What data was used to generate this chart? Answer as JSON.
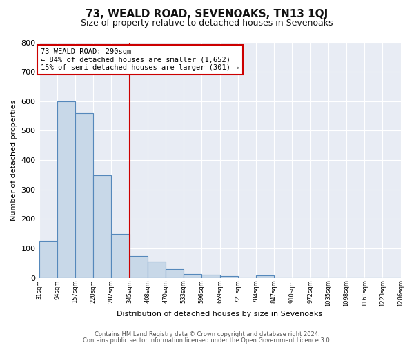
{
  "title": "73, WEALD ROAD, SEVENOAKS, TN13 1QJ",
  "subtitle": "Size of property relative to detached houses in Sevenoaks",
  "xlabel": "Distribution of detached houses by size in Sevenoaks",
  "ylabel": "Number of detached properties",
  "footer_lines": [
    "Contains HM Land Registry data © Crown copyright and database right 2024.",
    "Contains public sector information licensed under the Open Government Licence 3.0."
  ],
  "annotation_lines": [
    "73 WEALD ROAD: 290sqm",
    "← 84% of detached houses are smaller (1,652)",
    "15% of semi-detached houses are larger (301) →"
  ],
  "bin_labels": [
    "31sqm",
    "94sqm",
    "157sqm",
    "220sqm",
    "282sqm",
    "345sqm",
    "408sqm",
    "470sqm",
    "533sqm",
    "596sqm",
    "659sqm",
    "721sqm",
    "784sqm",
    "847sqm",
    "910sqm",
    "972sqm",
    "1035sqm",
    "1098sqm",
    "1161sqm",
    "1223sqm",
    "1286sqm"
  ],
  "bar_values": [
    125,
    600,
    560,
    348,
    148,
    75,
    55,
    30,
    13,
    10,
    6,
    0,
    8,
    0,
    0,
    0,
    0,
    0,
    0,
    0
  ],
  "bar_color": "#c8d8e8",
  "bar_edge_color": "#5588bb",
  "highlight_bin_index": 4,
  "highlight_color": "#cc0000",
  "ylim": [
    0,
    800
  ],
  "yticks": [
    0,
    100,
    200,
    300,
    400,
    500,
    600,
    700,
    800
  ],
  "annotation_box_color": "#cc0000",
  "annotation_box_bg": "#ffffff",
  "background_color": "#e8ecf4"
}
